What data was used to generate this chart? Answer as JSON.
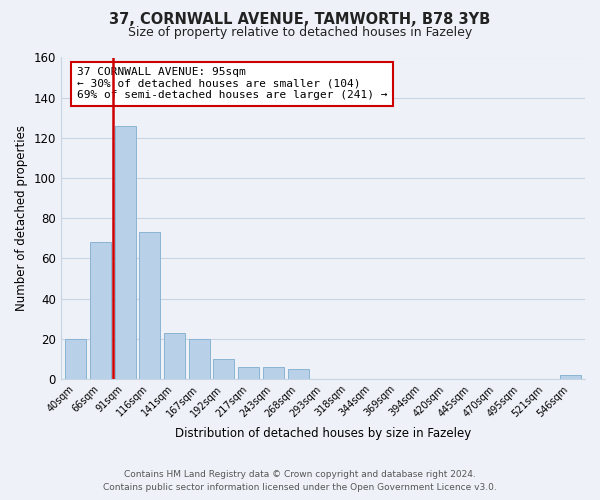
{
  "title": "37, CORNWALL AVENUE, TAMWORTH, B78 3YB",
  "subtitle": "Size of property relative to detached houses in Fazeley",
  "xlabel": "Distribution of detached houses by size in Fazeley",
  "ylabel": "Number of detached properties",
  "bar_labels": [
    "40sqm",
    "66sqm",
    "91sqm",
    "116sqm",
    "141sqm",
    "167sqm",
    "192sqm",
    "217sqm",
    "243sqm",
    "268sqm",
    "293sqm",
    "318sqm",
    "344sqm",
    "369sqm",
    "394sqm",
    "420sqm",
    "445sqm",
    "470sqm",
    "495sqm",
    "521sqm",
    "546sqm"
  ],
  "bar_values": [
    20,
    68,
    126,
    73,
    23,
    20,
    10,
    6,
    6,
    5,
    0,
    0,
    0,
    0,
    0,
    0,
    0,
    0,
    0,
    0,
    2
  ],
  "bar_color": "#b8d0e8",
  "bar_edge_color": "#8ab4d4",
  "highlight_bar_index": 2,
  "highlight_color": "#cc0000",
  "ylim": [
    0,
    160
  ],
  "yticks": [
    0,
    20,
    40,
    60,
    80,
    100,
    120,
    140,
    160
  ],
  "annotation_title": "37 CORNWALL AVENUE: 95sqm",
  "annotation_line1": "← 30% of detached houses are smaller (104)",
  "annotation_line2": "69% of semi-detached houses are larger (241) →",
  "annotation_box_color": "#ffffff",
  "annotation_border_color": "#cc0000",
  "footer_line1": "Contains HM Land Registry data © Crown copyright and database right 2024.",
  "footer_line2": "Contains public sector information licensed under the Open Government Licence v3.0.",
  "bg_color": "#eef2f8",
  "plot_bg_color": "#eef2f8",
  "grid_color": "#c8d4e4"
}
